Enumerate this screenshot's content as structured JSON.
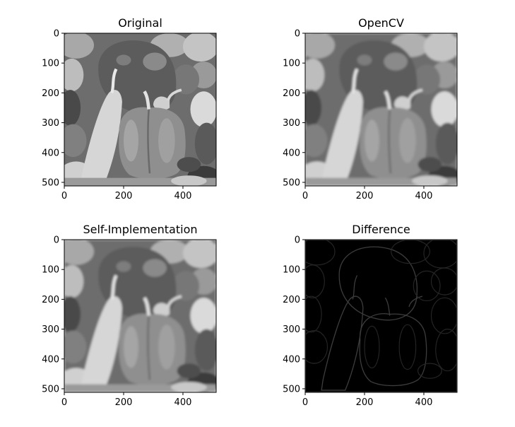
{
  "figure": {
    "panels": [
      {
        "title": "Original"
      },
      {
        "title": "OpenCV"
      },
      {
        "title": "Self-Implementation"
      },
      {
        "title": "Difference"
      }
    ]
  },
  "chart_data": [
    {
      "type": "image",
      "title": "Original",
      "image": "grayscale photo of bell peppers, sharp",
      "colormap": "gray",
      "x_ticks": [
        0,
        200,
        400
      ],
      "y_ticks": [
        0,
        100,
        200,
        300,
        400,
        500
      ],
      "xlim": [
        0,
        512
      ],
      "ylim": [
        512,
        0
      ]
    },
    {
      "type": "image",
      "title": "OpenCV",
      "image": "grayscale photo of bell peppers, blurred",
      "colormap": "gray",
      "x_ticks": [
        0,
        200,
        400
      ],
      "y_ticks": [
        0,
        100,
        200,
        300,
        400,
        500
      ],
      "xlim": [
        0,
        512
      ],
      "ylim": [
        512,
        0
      ]
    },
    {
      "type": "image",
      "title": "Self-Implementation",
      "image": "grayscale photo of bell peppers, blurred",
      "colormap": "gray",
      "x_ticks": [
        0,
        200,
        400
      ],
      "y_ticks": [
        0,
        100,
        200,
        300,
        400,
        500
      ],
      "xlim": [
        0,
        512
      ],
      "ylim": [
        512,
        0
      ]
    },
    {
      "type": "image",
      "title": "Difference",
      "image": "mostly black image with faint edge outlines",
      "colormap": "gray",
      "x_ticks": [
        0,
        200,
        400
      ],
      "y_ticks": [
        0,
        100,
        200,
        300,
        400,
        500
      ],
      "xlim": [
        0,
        512
      ],
      "ylim": [
        512,
        0
      ]
    }
  ]
}
